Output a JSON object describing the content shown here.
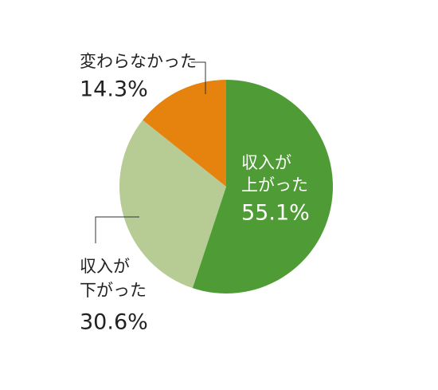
{
  "chart_data": {
    "type": "pie",
    "categories": [
      [
        "収入が",
        "上がった"
      ],
      [
        "収入が",
        "下がった"
      ],
      [
        "変わらなかった"
      ]
    ],
    "values": [
      55.1,
      30.6,
      14.3
    ],
    "value_labels": [
      "55.1%",
      "30.6%",
      "14.3%"
    ],
    "colors": [
      "#4f9c37",
      "#b6cc94",
      "#e6820e"
    ]
  }
}
